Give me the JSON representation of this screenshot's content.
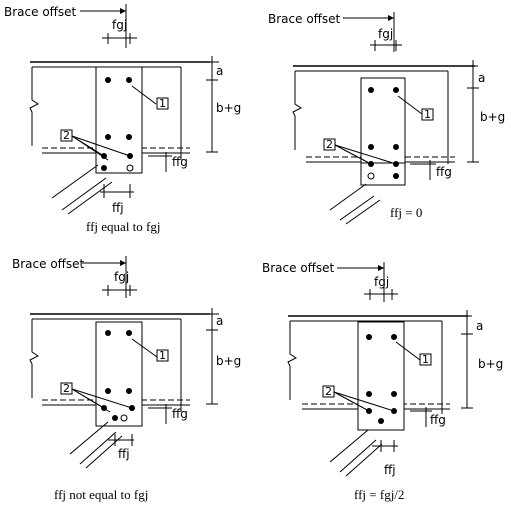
{
  "panels": [
    {
      "brace_offset_label": "Brace offset",
      "fgj_label": "fgj",
      "a_label": "a",
      "bg_label": "b+g",
      "ffg_label": "ffg",
      "ffj_label": "ffj",
      "callout_1": "1",
      "callout_2": "2",
      "caption": "ffj equal to fgj"
    },
    {
      "brace_offset_label": "Brace offset",
      "fgj_label": "fgj",
      "a_label": "a",
      "bg_label": "b+g",
      "ffg_label": "ffg",
      "ffj_label": "",
      "callout_1": "1",
      "callout_2": "2",
      "caption": "ffj = 0"
    },
    {
      "brace_offset_label": "Brace offset",
      "fgj_label": "fgj",
      "a_label": "a",
      "bg_label": "b+g",
      "ffg_label": "ffg",
      "ffj_label": "ffj",
      "callout_1": "1",
      "callout_2": "2",
      "caption": "ffj not equal to fgj"
    },
    {
      "brace_offset_label": "Brace offset",
      "fgj_label": "fgj",
      "a_label": "a",
      "bg_label": "b+g",
      "ffg_label": "ffg",
      "ffj_label": "ffj",
      "callout_1": "1",
      "callout_2": "2",
      "caption": "ffj = fgj/2"
    }
  ]
}
